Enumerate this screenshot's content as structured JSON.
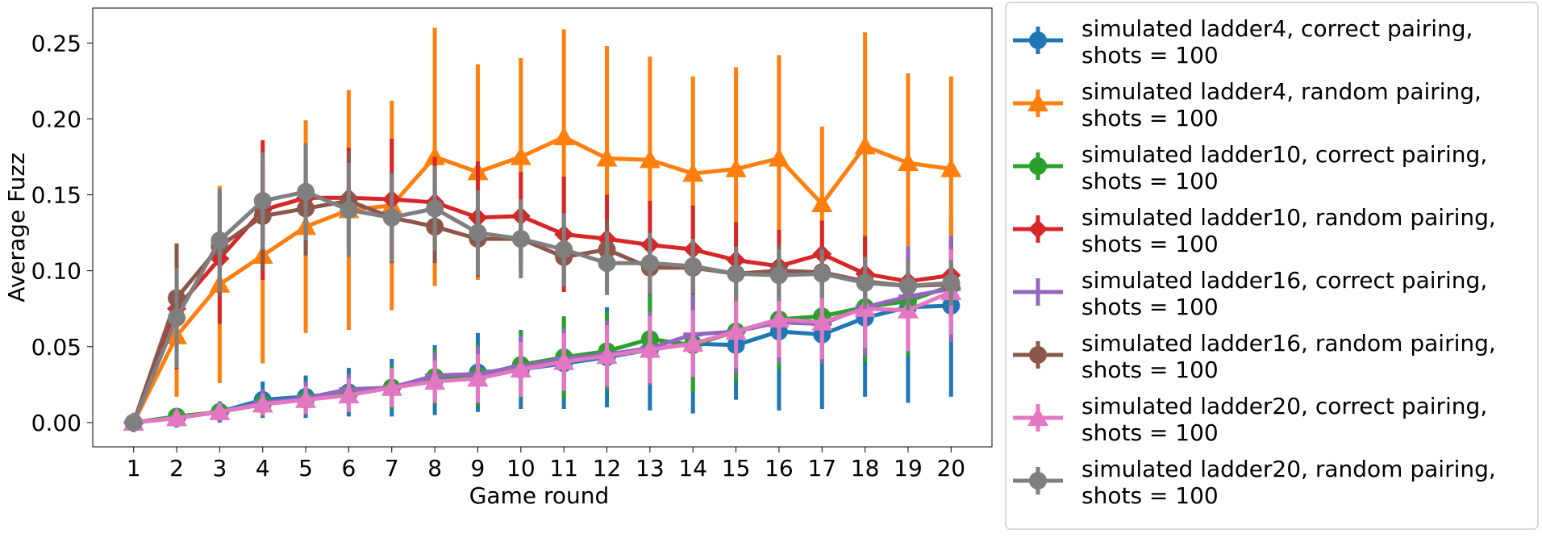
{
  "chart_data": {
    "type": "line",
    "title": "",
    "xlabel": "Game round",
    "ylabel": "Average Fuzz",
    "x": [
      1,
      2,
      3,
      4,
      5,
      6,
      7,
      8,
      9,
      10,
      11,
      12,
      13,
      14,
      15,
      16,
      17,
      18,
      19,
      20
    ],
    "xticks": [
      "1",
      "2",
      "3",
      "4",
      "5",
      "6",
      "7",
      "8",
      "9",
      "10",
      "11",
      "12",
      "13",
      "14",
      "15",
      "16",
      "17",
      "18",
      "19",
      "20"
    ],
    "yticks": [
      "0.00",
      "0.05",
      "0.10",
      "0.15",
      "0.20",
      "0.25"
    ],
    "ytick_values": [
      0.0,
      0.05,
      0.1,
      0.15,
      0.2,
      0.25
    ],
    "xlim": [
      0.05,
      20.95
    ],
    "ylim": [
      -0.016,
      0.273
    ],
    "grid": false,
    "legend_position": "outside-right",
    "series": [
      {
        "name": "simulated ladder4, correct pairing, shots = 100",
        "color": "#1f77b4",
        "marker": "circle",
        "values": [
          0.0,
          0.003,
          0.007,
          0.015,
          0.017,
          0.02,
          0.023,
          0.028,
          0.033,
          0.035,
          0.039,
          0.043,
          0.048,
          0.052,
          0.051,
          0.06,
          0.058,
          0.069,
          0.076,
          0.077
        ],
        "errors": [
          0.0,
          0.005,
          0.007,
          0.012,
          0.014,
          0.016,
          0.019,
          0.023,
          0.026,
          0.026,
          0.03,
          0.033,
          0.04,
          0.046,
          0.036,
          0.052,
          0.049,
          0.052,
          0.063,
          0.06
        ]
      },
      {
        "name": "simulated ladder4, random pairing, shots = 100",
        "color": "#ff7f0e",
        "marker": "triangle",
        "values": [
          0.0,
          0.057,
          0.091,
          0.11,
          0.129,
          0.14,
          0.143,
          0.175,
          0.165,
          0.175,
          0.188,
          0.174,
          0.173,
          0.164,
          0.167,
          0.174,
          0.144,
          0.182,
          0.171,
          0.167
        ],
        "errors": [
          0.0,
          0.04,
          0.065,
          0.071,
          0.07,
          0.079,
          0.069,
          0.085,
          0.071,
          0.065,
          0.071,
          0.074,
          0.068,
          0.064,
          0.067,
          0.068,
          0.051,
          0.075,
          0.059,
          0.061
        ]
      },
      {
        "name": "simulated ladder10, correct pairing, shots = 100",
        "color": "#2ca02c",
        "marker": "circle",
        "values": [
          0.0,
          0.004,
          0.007,
          0.012,
          0.015,
          0.019,
          0.023,
          0.03,
          0.031,
          0.038,
          0.043,
          0.047,
          0.055,
          0.051,
          0.06,
          0.068,
          0.07,
          0.076,
          0.08,
          0.09
        ],
        "errors": [
          0.0,
          0.004,
          0.006,
          0.008,
          0.01,
          0.012,
          0.014,
          0.018,
          0.02,
          0.022,
          0.027,
          0.026,
          0.03,
          0.031,
          0.033,
          0.033,
          0.03,
          0.036,
          0.036,
          0.03
        ]
      },
      {
        "name": "simulated ladder10, random pairing, shots = 100",
        "color": "#d62728",
        "marker": "diamond",
        "values": [
          0.0,
          0.075,
          0.108,
          0.14,
          0.148,
          0.148,
          0.147,
          0.145,
          0.135,
          0.136,
          0.124,
          0.121,
          0.117,
          0.114,
          0.107,
          0.103,
          0.111,
          0.098,
          0.093,
          0.097
        ],
        "errors": [
          0.0,
          0.04,
          0.043,
          0.046,
          0.036,
          0.033,
          0.04,
          0.03,
          0.037,
          0.029,
          0.038,
          0.029,
          0.029,
          0.029,
          0.025,
          0.024,
          0.022,
          0.025,
          0.022,
          0.026
        ]
      },
      {
        "name": "simulated ladder16, correct pairing, shots = 100",
        "color": "#9467bd",
        "marker": "plus",
        "values": [
          0.0,
          0.003,
          0.007,
          0.013,
          0.016,
          0.022,
          0.023,
          0.031,
          0.032,
          0.037,
          0.042,
          0.045,
          0.049,
          0.058,
          0.06,
          0.066,
          0.065,
          0.076,
          0.083,
          0.088
        ],
        "errors": [
          0.0,
          0.004,
          0.006,
          0.009,
          0.011,
          0.01,
          0.012,
          0.015,
          0.018,
          0.02,
          0.02,
          0.022,
          0.024,
          0.026,
          0.028,
          0.027,
          0.026,
          0.032,
          0.033,
          0.035
        ]
      },
      {
        "name": "simulated ladder16, random pairing, shots = 100",
        "color": "#8c564b",
        "marker": "circle",
        "values": [
          0.0,
          0.082,
          0.116,
          0.136,
          0.141,
          0.146,
          0.135,
          0.129,
          0.121,
          0.121,
          0.109,
          0.114,
          0.102,
          0.102,
          0.098,
          0.1,
          0.099,
          0.093,
          0.09,
          0.091
        ],
        "errors": [
          0.0,
          0.036,
          0.033,
          0.036,
          0.031,
          0.033,
          0.03,
          0.024,
          0.025,
          0.023,
          0.02,
          0.02,
          0.018,
          0.018,
          0.017,
          0.018,
          0.017,
          0.015,
          0.016,
          0.015
        ]
      },
      {
        "name": "simulated ladder20, correct pairing, shots = 100",
        "color": "#e377c2",
        "marker": "triangle",
        "values": [
          0.0,
          0.003,
          0.007,
          0.012,
          0.015,
          0.018,
          0.023,
          0.027,
          0.029,
          0.035,
          0.04,
          0.044,
          0.048,
          0.052,
          0.06,
          0.068,
          0.066,
          0.075,
          0.074,
          0.086
        ],
        "errors": [
          0.0,
          0.003,
          0.005,
          0.007,
          0.009,
          0.011,
          0.013,
          0.014,
          0.016,
          0.018,
          0.019,
          0.02,
          0.022,
          0.022,
          0.024,
          0.025,
          0.024,
          0.026,
          0.027,
          0.028
        ]
      },
      {
        "name": "simulated ladder20, random pairing, shots = 100",
        "color": "#7f7f7f",
        "marker": "circle",
        "values": [
          0.0,
          0.069,
          0.12,
          0.146,
          0.152,
          0.14,
          0.135,
          0.141,
          0.125,
          0.121,
          0.114,
          0.105,
          0.105,
          0.103,
          0.098,
          0.097,
          0.098,
          0.092,
          0.09,
          0.092
        ],
        "errors": [
          0.0,
          0.033,
          0.034,
          0.032,
          0.032,
          0.031,
          0.029,
          0.028,
          0.028,
          0.026,
          0.024,
          0.021,
          0.02,
          0.018,
          0.018,
          0.017,
          0.016,
          0.017,
          0.016,
          0.015
        ]
      }
    ],
    "legend_lines": [
      [
        "simulated ladder4, correct pairing,",
        "shots = 100"
      ],
      [
        "simulated ladder4, random pairing,",
        "shots = 100"
      ],
      [
        "simulated ladder10, correct pairing,",
        "shots = 100"
      ],
      [
        "simulated ladder10, random pairing,",
        "shots = 100"
      ],
      [
        "simulated ladder16, correct pairing,",
        "shots = 100"
      ],
      [
        "simulated ladder16, random pairing,",
        "shots = 100"
      ],
      [
        "simulated ladder20, correct pairing,",
        "shots = 100"
      ],
      [
        "simulated ladder20, random pairing,",
        "shots = 100"
      ]
    ]
  }
}
